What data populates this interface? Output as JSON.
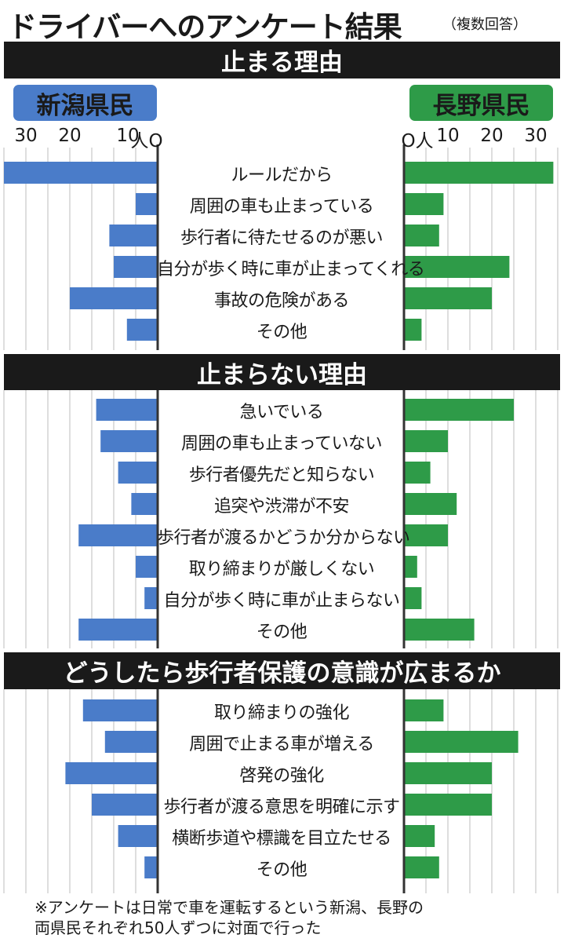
{
  "header": {
    "title": "ドライバーへのアンケート結果",
    "subtitle": "（複数回答）"
  },
  "legend": {
    "left_label": "新潟県民",
    "right_label": "長野県民"
  },
  "axis": {
    "left_ticks": [
      "30",
      "20",
      "10",
      "人O"
    ],
    "right_ticks": [
      "O人",
      "10",
      "20",
      "30"
    ]
  },
  "footnote": {
    "line1": "※アンケートは日常で車を運転するという新潟、長野の",
    "line2": "両県民それぞれ50人ずつに対面で行った"
  },
  "colors": {
    "niigata": "#4a7cc9",
    "nagano": "#2e9b48",
    "section_bg": "#1a1a1a",
    "grid": "#bdbdbd"
  },
  "chart_data": {
    "type": "bar",
    "orientation": "horizontal-butterfly",
    "unit": "人",
    "xlim": [
      0,
      35
    ],
    "grid": true,
    "series_names": [
      "新潟県民",
      "長野県民"
    ],
    "sections": [
      {
        "title": "止まる理由",
        "rows": [
          {
            "label": "ルールだから",
            "niigata": 35,
            "nagano": 34
          },
          {
            "label": "周囲の車も止まっている",
            "niigata": 5,
            "nagano": 9
          },
          {
            "label": "歩行者に待たせるのが悪い",
            "niigata": 11,
            "nagano": 8
          },
          {
            "label": "自分が歩く時に車が止まってくれる",
            "niigata": 10,
            "nagano": 24
          },
          {
            "label": "事故の危険がある",
            "niigata": 20,
            "nagano": 20
          },
          {
            "label": "その他",
            "niigata": 7,
            "nagano": 4
          }
        ]
      },
      {
        "title": "止まらない理由",
        "rows": [
          {
            "label": "急いでいる",
            "niigata": 14,
            "nagano": 25
          },
          {
            "label": "周囲の車も止まっていない",
            "niigata": 13,
            "nagano": 10
          },
          {
            "label": "歩行者優先だと知らない",
            "niigata": 9,
            "nagano": 6
          },
          {
            "label": "追突や渋滞が不安",
            "niigata": 6,
            "nagano": 12
          },
          {
            "label": "歩行者が渡るかどうか分からない",
            "niigata": 18,
            "nagano": 10
          },
          {
            "label": "取り締まりが厳しくない",
            "niigata": 5,
            "nagano": 3
          },
          {
            "label": "自分が歩く時に車が止まらない",
            "niigata": 3,
            "nagano": 4
          },
          {
            "label": "その他",
            "niigata": 18,
            "nagano": 16
          }
        ]
      },
      {
        "title": "どうしたら歩行者保護の意識が広まるか",
        "rows": [
          {
            "label": "取り締まりの強化",
            "niigata": 17,
            "nagano": 9
          },
          {
            "label": "周囲で止まる車が増える",
            "niigata": 12,
            "nagano": 26
          },
          {
            "label": "啓発の強化",
            "niigata": 21,
            "nagano": 20
          },
          {
            "label": "歩行者が渡る意思を明確に示す",
            "niigata": 15,
            "nagano": 20
          },
          {
            "label": "横断歩道や標識を目立たせる",
            "niigata": 9,
            "nagano": 7
          },
          {
            "label": "その他",
            "niigata": 3,
            "nagano": 8
          }
        ]
      }
    ]
  }
}
